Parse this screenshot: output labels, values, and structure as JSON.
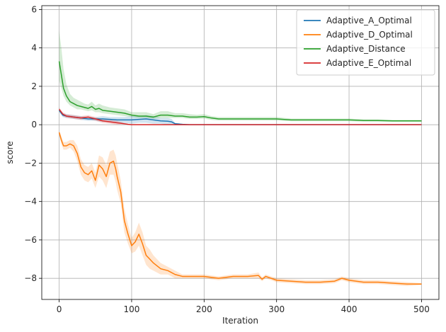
{
  "chart_data": {
    "type": "line",
    "title": "",
    "xlabel": "Iteration",
    "ylabel": "score",
    "xlim": [
      -24,
      524
    ],
    "ylim": [
      -9.1,
      6.2
    ],
    "xticks": [
      0,
      100,
      200,
      300,
      400,
      500
    ],
    "yticks": [
      -8,
      -6,
      -4,
      -2,
      0,
      2,
      4,
      6
    ],
    "xtick_labels": [
      "0",
      "100",
      "200",
      "300",
      "400",
      "500"
    ],
    "ytick_labels": [
      "−8",
      "−6",
      "−4",
      "−2",
      "0",
      "2",
      "4",
      "6"
    ],
    "grid": true,
    "legend_position": "top-right",
    "series": [
      {
        "name": "Adaptive_A_Optimal",
        "color": "#1f77b4",
        "band_color": "#1f77b4",
        "x": [
          0,
          5,
          10,
          20,
          30,
          40,
          50,
          60,
          70,
          80,
          90,
          100,
          110,
          120,
          130,
          140,
          150,
          155,
          160,
          170,
          180,
          200,
          250,
          300,
          350,
          400,
          450,
          500
        ],
        "y": [
          0.75,
          0.5,
          0.45,
          0.4,
          0.35,
          0.3,
          0.3,
          0.3,
          0.28,
          0.25,
          0.25,
          0.25,
          0.28,
          0.3,
          0.25,
          0.2,
          0.18,
          0.15,
          0.05,
          0.02,
          0.0,
          0.0,
          0.0,
          0.0,
          0.0,
          0.0,
          0.0,
          0.0
        ],
        "lower": [
          0.65,
          0.4,
          0.35,
          0.3,
          0.25,
          0.2,
          0.2,
          0.15,
          0.15,
          0.1,
          0.1,
          0.05,
          0.1,
          0.1,
          0.05,
          0.05,
          0.0,
          0.0,
          0.0,
          0.0,
          0.0,
          0.0,
          0.0,
          0.0,
          0.0,
          0.0,
          0.0,
          0.0
        ],
        "upper": [
          0.85,
          0.6,
          0.55,
          0.5,
          0.45,
          0.4,
          0.4,
          0.45,
          0.4,
          0.4,
          0.4,
          0.45,
          0.45,
          0.5,
          0.45,
          0.35,
          0.35,
          0.3,
          0.1,
          0.05,
          0.0,
          0.0,
          0.0,
          0.0,
          0.0,
          0.0,
          0.0,
          0.0
        ]
      },
      {
        "name": "Adaptive_D_Optimal",
        "color": "#ff7f0e",
        "band_color": "#ff7f0e",
        "x": [
          0,
          3,
          6,
          10,
          15,
          20,
          25,
          30,
          35,
          40,
          45,
          50,
          55,
          60,
          65,
          70,
          75,
          78,
          80,
          85,
          90,
          95,
          100,
          105,
          110,
          115,
          120,
          125,
          130,
          140,
          150,
          160,
          170,
          180,
          200,
          220,
          240,
          260,
          275,
          280,
          285,
          300,
          320,
          340,
          360,
          380,
          390,
          400,
          420,
          440,
          460,
          480,
          500
        ],
        "y": [
          -0.4,
          -0.8,
          -1.1,
          -1.1,
          -1.0,
          -1.1,
          -1.5,
          -2.2,
          -2.5,
          -2.6,
          -2.4,
          -2.9,
          -2.1,
          -2.3,
          -2.7,
          -2.0,
          -1.9,
          -2.3,
          -2.7,
          -3.5,
          -5.0,
          -5.7,
          -6.3,
          -6.1,
          -5.7,
          -6.2,
          -6.8,
          -7.0,
          -7.2,
          -7.5,
          -7.6,
          -7.8,
          -7.9,
          -7.9,
          -7.9,
          -8.0,
          -7.9,
          -7.9,
          -7.85,
          -8.05,
          -7.9,
          -8.1,
          -8.15,
          -8.2,
          -8.2,
          -8.15,
          -8.0,
          -8.1,
          -8.2,
          -8.2,
          -8.25,
          -8.3,
          -8.3
        ],
        "lower": [
          -0.5,
          -1.0,
          -1.3,
          -1.3,
          -1.2,
          -1.4,
          -1.9,
          -2.6,
          -2.9,
          -3.0,
          -2.8,
          -3.3,
          -2.7,
          -2.9,
          -3.3,
          -2.6,
          -2.6,
          -3.0,
          -3.4,
          -4.1,
          -5.6,
          -6.2,
          -6.7,
          -6.6,
          -6.3,
          -6.8,
          -7.3,
          -7.5,
          -7.6,
          -7.8,
          -7.8,
          -8.0,
          -8.0,
          -8.0,
          -8.0,
          -8.1,
          -8.0,
          -8.0,
          -8.0,
          -8.15,
          -8.0,
          -8.2,
          -8.25,
          -8.3,
          -8.3,
          -8.25,
          -8.1,
          -8.2,
          -8.3,
          -8.3,
          -8.35,
          -8.4,
          -8.35
        ],
        "upper": [
          -0.3,
          -0.6,
          -0.9,
          -0.9,
          -0.8,
          -0.8,
          -1.1,
          -1.8,
          -2.1,
          -2.2,
          -2.0,
          -2.5,
          -1.6,
          -1.7,
          -2.1,
          -1.4,
          -1.3,
          -1.6,
          -2.0,
          -2.9,
          -4.4,
          -5.2,
          -5.9,
          -5.6,
          -5.1,
          -5.6,
          -6.3,
          -6.5,
          -6.8,
          -7.2,
          -7.4,
          -7.6,
          -7.8,
          -7.8,
          -7.8,
          -7.9,
          -7.8,
          -7.8,
          -7.7,
          -7.95,
          -7.8,
          -8.0,
          -8.05,
          -8.1,
          -8.1,
          -8.05,
          -7.9,
          -8.0,
          -8.1,
          -8.1,
          -8.15,
          -8.2,
          -8.25
        ]
      },
      {
        "name": "Adaptive_Distance",
        "color": "#2ca02c",
        "band_color": "#2ca02c",
        "x": [
          0,
          3,
          6,
          10,
          15,
          20,
          25,
          30,
          35,
          40,
          45,
          50,
          55,
          60,
          70,
          80,
          90,
          100,
          110,
          120,
          130,
          140,
          150,
          160,
          170,
          180,
          190,
          200,
          210,
          220,
          240,
          260,
          280,
          300,
          320,
          340,
          360,
          380,
          400,
          420,
          440,
          460,
          480,
          500
        ],
        "y": [
          3.3,
          2.6,
          1.9,
          1.5,
          1.2,
          1.1,
          1.0,
          0.95,
          0.9,
          0.85,
          0.95,
          0.8,
          0.85,
          0.75,
          0.7,
          0.65,
          0.6,
          0.5,
          0.45,
          0.45,
          0.4,
          0.5,
          0.5,
          0.45,
          0.45,
          0.4,
          0.4,
          0.42,
          0.35,
          0.3,
          0.3,
          0.3,
          0.3,
          0.3,
          0.25,
          0.25,
          0.25,
          0.25,
          0.25,
          0.22,
          0.22,
          0.2,
          0.2,
          0.2
        ],
        "lower": [
          2.3,
          1.9,
          1.5,
          1.2,
          1.0,
          0.9,
          0.8,
          0.8,
          0.75,
          0.7,
          0.75,
          0.65,
          0.65,
          0.6,
          0.55,
          0.5,
          0.45,
          0.4,
          0.35,
          0.35,
          0.3,
          0.35,
          0.35,
          0.35,
          0.35,
          0.3,
          0.3,
          0.32,
          0.25,
          0.22,
          0.22,
          0.22,
          0.22,
          0.22,
          0.18,
          0.18,
          0.18,
          0.18,
          0.18,
          0.16,
          0.16,
          0.15,
          0.15,
          0.15
        ],
        "upper": [
          4.9,
          4.0,
          2.9,
          2.1,
          1.6,
          1.4,
          1.3,
          1.2,
          1.1,
          1.05,
          1.2,
          1.0,
          1.1,
          1.0,
          0.9,
          0.85,
          0.8,
          0.65,
          0.65,
          0.65,
          0.55,
          0.7,
          0.7,
          0.6,
          0.6,
          0.55,
          0.52,
          0.55,
          0.45,
          0.4,
          0.4,
          0.4,
          0.4,
          0.4,
          0.32,
          0.32,
          0.32,
          0.32,
          0.32,
          0.28,
          0.28,
          0.25,
          0.25,
          0.25
        ]
      },
      {
        "name": "Adaptive_E_Optimal",
        "color": "#d62728",
        "band_color": "#d62728",
        "x": [
          0,
          5,
          10,
          20,
          30,
          40,
          45,
          50,
          60,
          70,
          80,
          90,
          95,
          100,
          150,
          200,
          250,
          300,
          350,
          400,
          450,
          500
        ],
        "y": [
          0.8,
          0.55,
          0.45,
          0.4,
          0.35,
          0.4,
          0.35,
          0.3,
          0.2,
          0.15,
          0.1,
          0.05,
          0.02,
          0.0,
          0.0,
          0.0,
          0.0,
          0.0,
          0.0,
          0.0,
          0.0,
          0.0
        ],
        "lower": [
          0.7,
          0.45,
          0.35,
          0.3,
          0.25,
          0.3,
          0.25,
          0.2,
          0.1,
          0.05,
          0.0,
          0.0,
          0.0,
          0.0,
          0.0,
          0.0,
          0.0,
          0.0,
          0.0,
          0.0,
          0.0,
          0.0
        ],
        "upper": [
          0.9,
          0.65,
          0.55,
          0.5,
          0.45,
          0.5,
          0.45,
          0.4,
          0.3,
          0.25,
          0.2,
          0.1,
          0.05,
          0.0,
          0.0,
          0.0,
          0.0,
          0.0,
          0.0,
          0.0,
          0.0,
          0.0
        ]
      }
    ]
  }
}
